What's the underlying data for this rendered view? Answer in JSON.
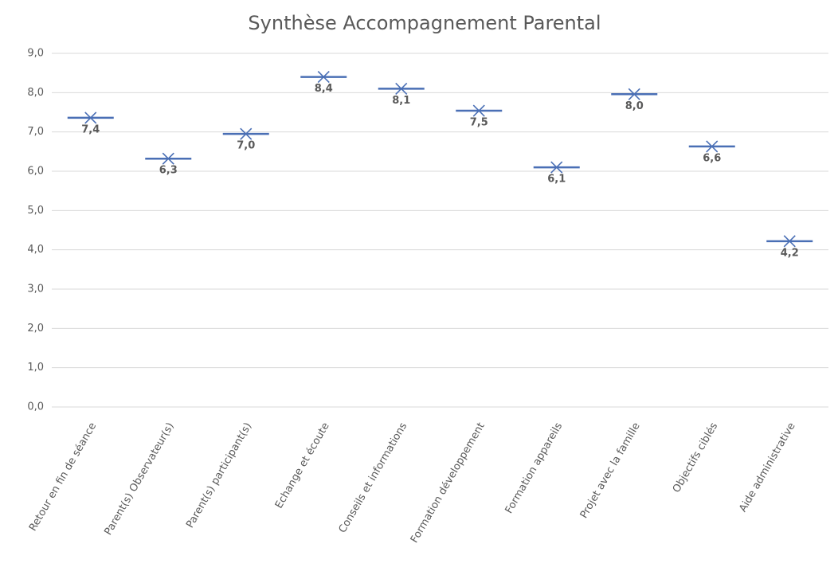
{
  "chart_data": {
    "type": "box",
    "title": "Synthèse Accompagnement Parental",
    "categories": [
      "Retour en fin de séance",
      "Parent(s) Observateur(s)",
      "Parent(s) participant(s)",
      "Echange et écoute",
      "Conseils et informations",
      "Formation développement",
      "Formation appareils",
      "Projet avec la famille",
      "Objectifs ciblés",
      "Aide administrative"
    ],
    "values": [
      7.36,
      6.32,
      6.95,
      8.4,
      8.1,
      7.54,
      6.1,
      7.96,
      6.63,
      4.22
    ],
    "value_labels": [
      "7,4",
      "6,3",
      "7,0",
      "8,4",
      "8,1",
      "7,5",
      "6,1",
      "8,0",
      "6,6",
      "4,2"
    ],
    "color": "#4a6fb5",
    "ylim": [
      0,
      9
    ],
    "yticks": [
      {
        "value": 0,
        "label": "0,0"
      },
      {
        "value": 1,
        "label": "1,0"
      },
      {
        "value": 2,
        "label": "2,0"
      },
      {
        "value": 3,
        "label": "3,0"
      },
      {
        "value": 4,
        "label": "4,0"
      },
      {
        "value": 5,
        "label": "5,0"
      },
      {
        "value": 6,
        "label": "6,0"
      },
      {
        "value": 7,
        "label": "7,0"
      },
      {
        "value": 8,
        "label": "8,0"
      },
      {
        "value": 9,
        "label": "9,0"
      }
    ],
    "grid": true
  }
}
